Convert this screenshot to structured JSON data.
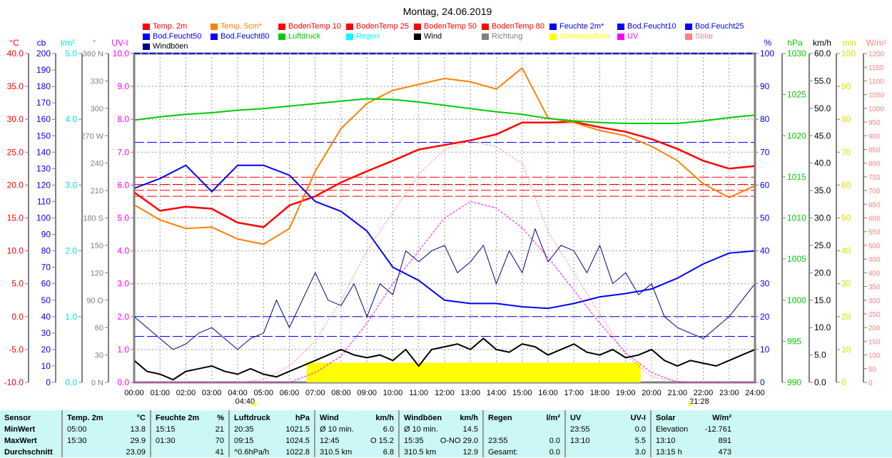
{
  "chart_data": {
    "type": "line",
    "title": "Montag, 24.06.2019",
    "x_ticks": [
      "00:00",
      "01:00",
      "02:00",
      "03:00",
      "04:00",
      "05:00",
      "06:00",
      "07:00",
      "08:00",
      "09:00",
      "10:00",
      "11:00",
      "12:00",
      "13:00",
      "14:00",
      "15:00",
      "16:00",
      "17:00",
      "18:00",
      "19:00",
      "20:00",
      "21:00",
      "22:00",
      "23:00",
      "24:00"
    ],
    "sunrise": "04:40",
    "sunset": "21:28",
    "axes_left": [
      {
        "unit": "°C",
        "color": "#ff0000",
        "min": -10,
        "max": 40,
        "step": 5,
        "decimals": 1
      },
      {
        "unit": "cb",
        "color": "#0000ff",
        "min": 0,
        "max": 200,
        "step": 10,
        "decimals": 0
      },
      {
        "unit": "l/m²",
        "color": "#00e0e0",
        "min": 0,
        "max": 5,
        "step": 1,
        "decimals": 1
      },
      {
        "unit": "°",
        "color": "#808080",
        "labels": [
          "0 N",
          "30",
          "60",
          "90 O",
          "120",
          "150",
          "180 S",
          "210",
          "240",
          "270 W",
          "300",
          "330",
          "360 N"
        ]
      },
      {
        "unit": "UV-I",
        "color": "#ff00ff",
        "min": 0,
        "max": 10,
        "step": 1,
        "decimals": 1
      }
    ],
    "axes_right": [
      {
        "unit": "%",
        "color": "#0000ff",
        "min": 0,
        "max": 100,
        "step": 10,
        "decimals": 0
      },
      {
        "unit": "hPa",
        "color": "#00cc00",
        "min": 990,
        "max": 1030,
        "step": 5,
        "decimals": 0
      },
      {
        "unit": "km/h",
        "color": "#000000",
        "min": 0,
        "max": 60,
        "step": 5,
        "decimals": 1
      },
      {
        "unit": "min",
        "color": "#e0e000",
        "min": 0,
        "max": 100,
        "step": 10,
        "decimals": 0
      },
      {
        "unit": "W/m²",
        "color": "#ff8080",
        "min": 0,
        "max": 1200,
        "step": 50,
        "decimals": 0
      }
    ],
    "legend": [
      {
        "label": "Temp. 2m",
        "color": "#ff0000"
      },
      {
        "label": "Temp. 5cm*",
        "color": "#ff8000"
      },
      {
        "label": "BodenTemp 10",
        "color": "#ff0000"
      },
      {
        "label": "BodenTemp 25",
        "color": "#ff0000"
      },
      {
        "label": "BodenTemp 50",
        "color": "#ff0000"
      },
      {
        "label": "BodenTemp 80",
        "color": "#ff0000"
      },
      {
        "label": "Feuchte 2m*",
        "color": "#0000ff"
      },
      {
        "label": "Bod.Feucht10",
        "color": "#0000ff"
      },
      {
        "label": "Bod.Feucht25",
        "color": "#0000ff"
      },
      {
        "label": "Bod.Feucht50",
        "color": "#0000ff"
      },
      {
        "label": "Bod.Feucht80",
        "color": "#0000ff"
      },
      {
        "label": "Luftdruck",
        "color": "#00cc00"
      },
      {
        "label": "Regen",
        "color": "#00ffff"
      },
      {
        "label": "Wind",
        "color": "#000000"
      },
      {
        "label": "Richtung",
        "color": "#808080"
      },
      {
        "label": "Sonnenschein",
        "color": "#ffff00"
      },
      {
        "label": "UV",
        "color": "#ff00ff"
      },
      {
        "label": "Solar",
        "color": "#ff8080"
      },
      {
        "label": "Windböen",
        "color": "#000080"
      }
    ],
    "series": [
      {
        "name": "Temp. 2m",
        "axis": "°C",
        "color": "#ff0000",
        "width": 2.5,
        "values": [
          18.9,
          16.1,
          16.7,
          16.4,
          14.3,
          13.6,
          16.9,
          18.3,
          20.4,
          22.1,
          23.7,
          25.4,
          26.1,
          26.8,
          27.7,
          29.5,
          29.5,
          29.6,
          28.8,
          28.1,
          27.0,
          25.5,
          23.7,
          22.5,
          22.9
        ]
      },
      {
        "name": "Temp. 5cm*",
        "axis": "°C",
        "color": "#ff8000",
        "width": 2,
        "values": [
          17.0,
          14.7,
          13.4,
          13.6,
          11.8,
          11.0,
          13.4,
          22.1,
          28.6,
          32.4,
          34.4,
          35.3,
          36.2,
          35.7,
          34.6,
          37.8,
          30.2,
          29.5,
          28.3,
          27.5,
          25.9,
          23.7,
          20.2,
          18.1,
          19.9
        ]
      },
      {
        "name": "Feuchte 2m*",
        "axis": "%",
        "color": "#0000ff",
        "width": 2,
        "values": [
          59,
          62,
          66,
          58,
          66,
          66,
          63,
          55,
          52,
          46,
          35,
          31,
          25,
          24,
          24,
          23,
          22.5,
          24,
          26,
          27,
          28.4,
          31.7,
          36,
          39.3,
          40
        ]
      },
      {
        "name": "Luftdruck",
        "axis": "hPa",
        "color": "#00cc00",
        "width": 2,
        "values": [
          1021.9,
          1022.3,
          1022.6,
          1022.8,
          1023.1,
          1023.3,
          1023.6,
          1023.9,
          1024.2,
          1024.5,
          1024.4,
          1024.1,
          1023.7,
          1023.3,
          1022.9,
          1022.6,
          1022.1,
          1021.8,
          1021.6,
          1021.5,
          1021.5,
          1021.5,
          1021.8,
          1022.2,
          1022.5
        ]
      },
      {
        "name": "Solar",
        "axis": "W/m²",
        "color": "#ff8080",
        "width": 1,
        "dash": "2,2",
        "values": [
          0,
          0,
          0,
          0,
          0,
          10,
          60,
          150,
          300,
          480,
          620,
          760,
          850,
          880,
          860,
          800,
          550,
          400,
          250,
          100,
          20,
          5,
          0,
          0,
          0
        ]
      },
      {
        "name": "UV",
        "axis": "UV-I",
        "color": "#ff00ff",
        "width": 1,
        "dash": "3,2",
        "values": [
          0,
          0,
          0,
          0,
          0,
          0,
          0,
          0.3,
          0.8,
          1.8,
          3.0,
          4.0,
          5.0,
          5.5,
          5.3,
          4.7,
          3.8,
          2.8,
          1.8,
          0.9,
          0.3,
          0,
          0,
          0,
          0
        ]
      },
      {
        "name": "Windböen",
        "axis": "km/h",
        "color": "#000080",
        "width": 1,
        "values": [
          12,
          10,
          8,
          6,
          7,
          9,
          10,
          8,
          6,
          8,
          9,
          15,
          10,
          15,
          20,
          15,
          14,
          18,
          12,
          18,
          16,
          24,
          22,
          24,
          25,
          20,
          22,
          25,
          18,
          24,
          20,
          28,
          22,
          25,
          24,
          20,
          25,
          18,
          20,
          16,
          18,
          12,
          10,
          9,
          8,
          10,
          12,
          15,
          18
        ]
      },
      {
        "name": "Wind",
        "axis": "km/h",
        "color": "#000000",
        "width": 2,
        "values": [
          4,
          2,
          1.5,
          0.5,
          2,
          2.5,
          3,
          2,
          1.5,
          2.5,
          1.5,
          1,
          2,
          3,
          4,
          5,
          6,
          5,
          4.5,
          5,
          4,
          6,
          3,
          6,
          6.5,
          7,
          6,
          8,
          6,
          5.5,
          7,
          6.5,
          5,
          6,
          7,
          5.5,
          5,
          6,
          4.5,
          5,
          6,
          4,
          3,
          4,
          3.5,
          3,
          4,
          5,
          6
        ]
      }
    ],
    "reference_lines": [
      {
        "name": "BodenTemp 10",
        "axis": "°C",
        "value": 21.2,
        "color": "#ff0000"
      },
      {
        "name": "BodenTemp 25",
        "axis": "°C",
        "value": 20.1,
        "color": "#ff0000"
      },
      {
        "name": "BodenTemp 50",
        "axis": "°C",
        "value": 19.2,
        "color": "#ff0000"
      },
      {
        "name": "BodenTemp 80",
        "axis": "°C",
        "value": 18.3,
        "color": "#ff0000"
      },
      {
        "name": "Bod.Feucht10",
        "axis": "%",
        "value": 73,
        "color": "#0000ff"
      },
      {
        "name": "Bod.Feucht50",
        "axis": "%",
        "value": 20,
        "color": "#0000ff"
      },
      {
        "name": "Bod.Feucht80",
        "axis": "%",
        "value": 14,
        "color": "#0000ff"
      }
    ],
    "sunshine": {
      "start": 6.67,
      "end": 19.58,
      "level_min": 5
    }
  },
  "table": {
    "sections": [
      {
        "h": [
          "Sensor",
          ""
        ],
        "rows": [
          [
            "MinWert",
            ""
          ],
          [
            "MaxWert",
            ""
          ],
          [
            "Durchschnitt",
            ""
          ]
        ]
      },
      {
        "h": [
          "Temp. 2m",
          "°C"
        ],
        "rows": [
          [
            "05:00",
            "13.8"
          ],
          [
            "15:30",
            "29.9"
          ],
          [
            "",
            "23.09"
          ]
        ]
      },
      {
        "h": [
          "Feuchte 2m",
          "%"
        ],
        "rows": [
          [
            "15:15",
            "21"
          ],
          [
            "01:30",
            "70"
          ],
          [
            "",
            "41"
          ]
        ]
      },
      {
        "h": [
          "Luftdruck",
          "hPa"
        ],
        "rows": [
          [
            "20:35",
            "1021.5"
          ],
          [
            "09:15",
            "1024.5"
          ],
          [
            "^0.6hPa/h",
            "1022.8"
          ]
        ]
      },
      {
        "h": [
          "Wind",
          "km/h"
        ],
        "rows": [
          [
            "Ø 10 min.",
            "6.0"
          ],
          [
            "12:45",
            "O 15.2"
          ],
          [
            "310.5 km",
            "6.8"
          ]
        ]
      },
      {
        "h": [
          "Windböen",
          "km/h"
        ],
        "rows": [
          [
            "Ø 10 min.",
            "14.5"
          ],
          [
            "15:35",
            "O-NO 29.0"
          ],
          [
            "310.5 km",
            "12.9"
          ]
        ]
      },
      {
        "h": [
          "Regen",
          "l/m²"
        ],
        "rows": [
          [
            "",
            ""
          ],
          [
            "23:55",
            "0.0"
          ],
          [
            "Gesamt:",
            "0.0"
          ]
        ]
      },
      {
        "h": [
          "UV",
          "UV-I"
        ],
        "rows": [
          [
            "23:55",
            "0.0"
          ],
          [
            "13:10",
            "5.5"
          ],
          [
            "",
            "3.0"
          ]
        ]
      },
      {
        "h": [
          "Solar",
          "W/m²"
        ],
        "rows": [
          [
            "Elevation",
            "-12.761"
          ],
          [
            "13:10",
            "891"
          ],
          [
            "13:15 h",
            "473"
          ]
        ]
      }
    ]
  }
}
